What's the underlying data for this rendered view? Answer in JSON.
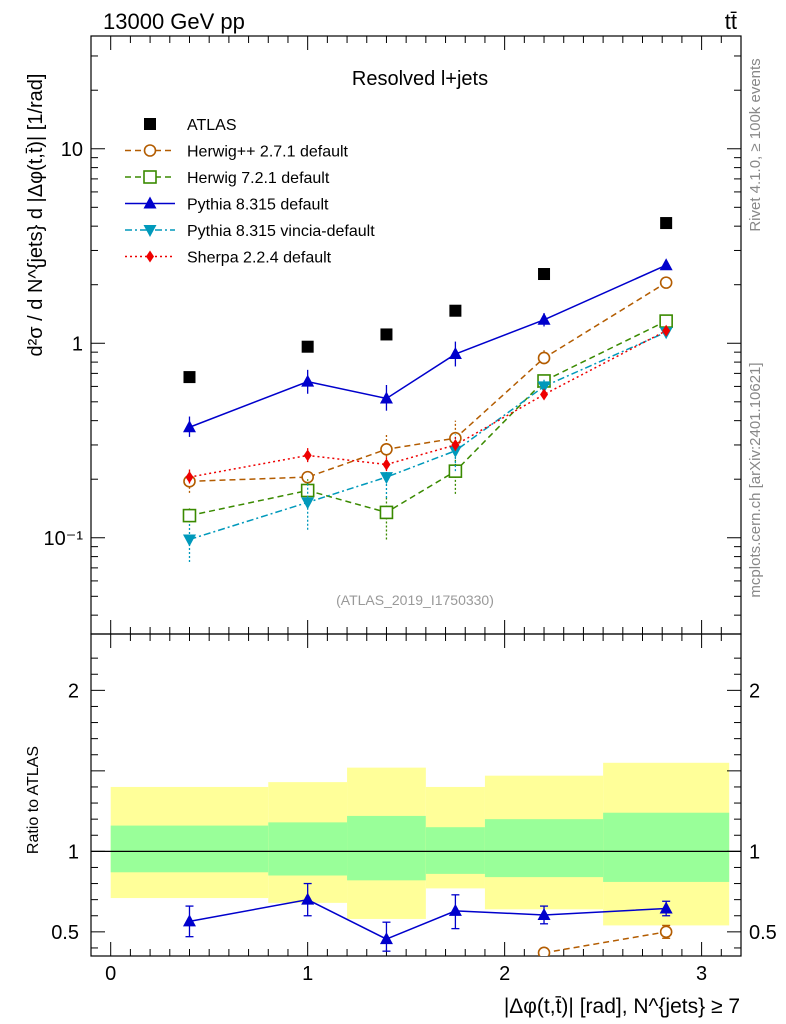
{
  "header": {
    "energy": "13000 GeV pp",
    "process": "tt̄"
  },
  "side_labels": {
    "rivet": "Rivet 4.1.0, ≥ 100k events",
    "mcplots": "mcplots.cern.ch [arXiv:2401.10621]"
  },
  "chart_data": [
    {
      "type": "scatter",
      "title": "Resolved l+jets",
      "analysis_id": "(ATLAS_2019_I1750330)",
      "ylabel": "d²σ / d N^{jets} d |Δφ(t,t̄)| [1/rad]",
      "yscale": "log",
      "xlim": [
        -0.1,
        3.2
      ],
      "ylim": [
        0.032,
        38
      ],
      "ytick_labels": [
        "10⁻¹",
        "1",
        "10"
      ],
      "x": [
        0.4,
        1.0,
        1.4,
        1.75,
        2.2,
        2.82
      ],
      "legend_position": "top-left",
      "series": [
        {
          "name": "ATLAS",
          "marker": "square",
          "color": "#000000",
          "line": "none",
          "values": [
            0.67,
            0.96,
            1.11,
            1.47,
            2.27,
            4.15
          ]
        },
        {
          "name": "Herwig++ 2.7.1 default",
          "marker": "circle-open",
          "color": "#b35c00",
          "line": "dashed",
          "values": [
            0.195,
            0.205,
            0.285,
            0.325,
            0.84,
            2.05
          ],
          "err_low": [
            0.17,
            0.19,
            0.26,
            0.27,
            0.78,
            2.0
          ],
          "err_high": [
            0.22,
            0.22,
            0.34,
            0.4,
            0.92,
            2.12
          ]
        },
        {
          "name": "Herwig 7.2.1 default",
          "marker": "square-open",
          "color": "#3a8a00",
          "line": "dashed",
          "values": [
            0.13,
            0.175,
            0.135,
            0.22,
            0.64,
            1.3
          ],
          "err_low": [
            0.12,
            0.155,
            0.098,
            0.168,
            0.58,
            1.22
          ],
          "err_high": [
            0.145,
            0.2,
            0.165,
            0.26,
            0.7,
            1.38
          ]
        },
        {
          "name": "Pythia 8.315 default",
          "marker": "triangle-up",
          "color": "#0000cc",
          "line": "solid",
          "values": [
            0.37,
            0.635,
            0.52,
            0.88,
            1.32,
            2.52
          ],
          "err_low": [
            0.33,
            0.55,
            0.45,
            0.76,
            1.22,
            2.45
          ],
          "err_high": [
            0.42,
            0.73,
            0.61,
            1.02,
            1.43,
            2.6
          ]
        },
        {
          "name": "Pythia 8.315 vincia-default",
          "marker": "triangle-down",
          "color": "#0099bb",
          "line": "dashdot",
          "values": [
            0.098,
            0.152,
            0.205,
            0.28,
            0.6,
            1.14
          ],
          "err_low": [
            0.075,
            0.11,
            0.16,
            0.22,
            0.55,
            1.08
          ],
          "err_high": [
            0.12,
            0.19,
            0.25,
            0.34,
            0.66,
            1.2
          ]
        },
        {
          "name": "Sherpa 2.2.4 default",
          "marker": "diamond",
          "color": "#ee0000",
          "line": "dotted",
          "values": [
            0.205,
            0.265,
            0.238,
            0.3,
            0.545,
            1.16
          ],
          "err_low": [
            0.19,
            0.245,
            0.22,
            0.28,
            0.52,
            1.1
          ],
          "err_high": [
            0.225,
            0.29,
            0.26,
            0.33,
            0.575,
            1.22
          ]
        }
      ]
    },
    {
      "type": "scatter",
      "ylabel": "Ratio to ATLAS",
      "xlabel": "|Δφ(t,t̄)| [rad], N^{jets} ≥ 7",
      "xlim": [
        -0.1,
        3.2
      ],
      "ylim": [
        0.35,
        2.35
      ],
      "yticks": [
        0.5,
        1,
        2
      ],
      "ytick_labels": [
        "0.5",
        "1",
        "2"
      ],
      "xticks": [
        0,
        1,
        2,
        3
      ],
      "xtick_labels": [
        "0",
        "1",
        "2",
        "3"
      ],
      "bins": [
        [
          0.0,
          0.8
        ],
        [
          0.8,
          1.2
        ],
        [
          1.2,
          1.6
        ],
        [
          1.6,
          1.9
        ],
        [
          1.9,
          2.5
        ],
        [
          2.5,
          3.14
        ]
      ],
      "band_outer": [
        [
          0.71,
          1.4
        ],
        [
          0.68,
          1.43
        ],
        [
          0.58,
          1.52
        ],
        [
          0.77,
          1.4
        ],
        [
          0.64,
          1.47
        ],
        [
          0.54,
          1.55
        ]
      ],
      "band_inner": [
        [
          0.87,
          1.16
        ],
        [
          0.85,
          1.18
        ],
        [
          0.82,
          1.22
        ],
        [
          0.86,
          1.15
        ],
        [
          0.84,
          1.2
        ],
        [
          0.81,
          1.24
        ]
      ],
      "series": [
        {
          "name": "Pythia 8.315 default",
          "color": "#0000cc",
          "marker": "triangle-up",
          "x": [
            0.4,
            1.0,
            1.4,
            1.75,
            2.2,
            2.82
          ],
          "values": [
            0.565,
            0.7,
            0.455,
            0.63,
            0.605,
            0.645
          ],
          "err_low": [
            0.47,
            0.6,
            0.38,
            0.52,
            0.55,
            0.6
          ],
          "err_high": [
            0.66,
            0.8,
            0.56,
            0.73,
            0.66,
            0.69
          ]
        },
        {
          "name": "Herwig++ 2.7.1 default",
          "color": "#b35c00",
          "marker": "circle-open",
          "x": [
            2.2,
            2.82
          ],
          "values": [
            0.37,
            0.5
          ],
          "err_low": [
            null,
            0.46
          ],
          "err_high": [
            null,
            0.54
          ]
        }
      ]
    }
  ]
}
